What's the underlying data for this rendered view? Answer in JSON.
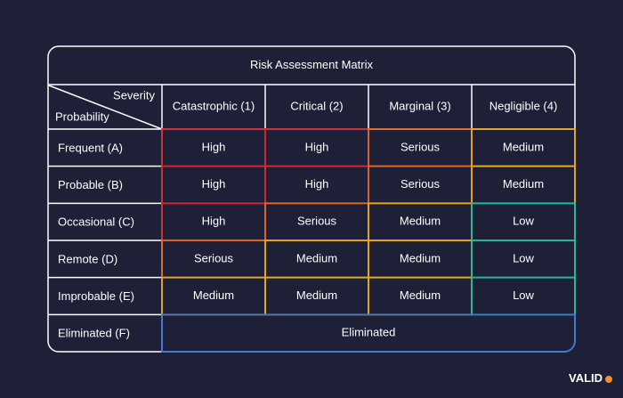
{
  "title": "Risk Assessment Matrix",
  "header": {
    "severity": "Severity",
    "probability": "Probability",
    "columns": [
      "Catastrophic (1)",
      "Critical (2)",
      "Marginal (3)",
      "Negligible (4)"
    ]
  },
  "rows": [
    {
      "label": "Frequent (A)",
      "cells": [
        "High",
        "High",
        "Serious",
        "Medium"
      ]
    },
    {
      "label": "Probable (B)",
      "cells": [
        "High",
        "High",
        "Serious",
        "Medium"
      ]
    },
    {
      "label": "Occasional (C)",
      "cells": [
        "High",
        "Serious",
        "Medium",
        "Low"
      ]
    },
    {
      "label": "Remote (D)",
      "cells": [
        "Serious",
        "Medium",
        "Medium",
        "Low"
      ]
    },
    {
      "label": "Improbable (E)",
      "cells": [
        "Medium",
        "Medium",
        "Medium",
        "Low"
      ]
    },
    {
      "label": "Eliminated (F)",
      "cells": [
        "Eliminated"
      ]
    }
  ],
  "level_colors": {
    "High": "#d3282f",
    "Serious": "#e06a2a",
    "Medium": "#e9a81f",
    "Low": "#27b89a",
    "Eliminated": "#3c78d8"
  },
  "brand": "VALID"
}
